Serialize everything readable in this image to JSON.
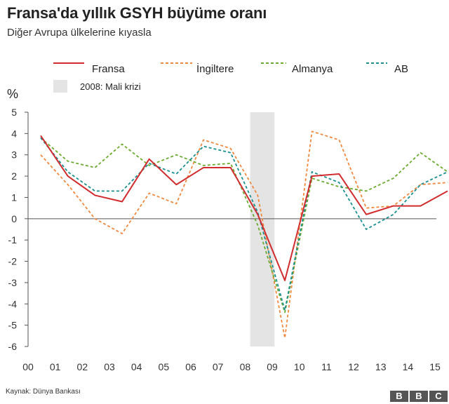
{
  "title": "Fransa'da yıllık GSYH büyüme oranı",
  "subtitle": "Diğer Avrupa ülkelerine kıyasla",
  "source": "Kaynak: Dünya Bankası",
  "logo": {
    "letters": [
      "B",
      "B",
      "C"
    ]
  },
  "chart_data": {
    "type": "line",
    "ylabel": "%",
    "xlabel": "",
    "ylim": [
      -6,
      5
    ],
    "yticks": [
      5,
      4,
      3,
      2,
      1,
      0,
      -1,
      -2,
      -3,
      -4,
      -5,
      -6
    ],
    "xticks": [
      "00",
      "01",
      "02",
      "03",
      "04",
      "05",
      "06",
      "07",
      "08",
      "09",
      "10",
      "11",
      "12",
      "13",
      "14",
      "15"
    ],
    "grid": "zero-line",
    "legend_position": "top",
    "highlight": {
      "label": "2008: Mali krizi",
      "x_range": [
        "07",
        "08"
      ]
    },
    "x": [
      "00",
      "01",
      "02",
      "03",
      "04",
      "05",
      "06",
      "07",
      "08",
      "09",
      "10",
      "11",
      "12",
      "13",
      "14",
      "15"
    ],
    "series": [
      {
        "name": "Fransa",
        "color": "#d12b2e",
        "dash": "solid",
        "values": [
          3.9,
          2.0,
          1.1,
          0.8,
          2.8,
          1.6,
          2.4,
          2.4,
          0.2,
          -2.9,
          2.0,
          2.1,
          0.2,
          0.6,
          0.6,
          1.3
        ]
      },
      {
        "name": "İngiltere",
        "color": "#f0883e",
        "dash": "dashed",
        "values": [
          3.0,
          1.6,
          0.0,
          -0.7,
          1.2,
          0.7,
          3.7,
          3.3,
          1.1,
          -5.6,
          4.1,
          3.7,
          0.5,
          0.6,
          1.6,
          1.7
        ]
      },
      {
        "name": "Almanya",
        "color": "#6aab2f",
        "dash": "dashed",
        "values": [
          3.8,
          2.7,
          2.4,
          3.5,
          2.5,
          3.0,
          2.5,
          2.6,
          -0.3,
          -4.4,
          1.9,
          1.5,
          1.3,
          1.9,
          3.1,
          2.2
        ]
      },
      {
        "name": "AB",
        "color": "#1a8f8f",
        "dash": "dashed",
        "values": [
          3.8,
          2.2,
          1.3,
          1.3,
          2.6,
          2.1,
          3.4,
          3.1,
          0.3,
          -4.3,
          2.2,
          1.7,
          -0.5,
          0.2,
          1.6,
          2.2
        ]
      }
    ]
  }
}
